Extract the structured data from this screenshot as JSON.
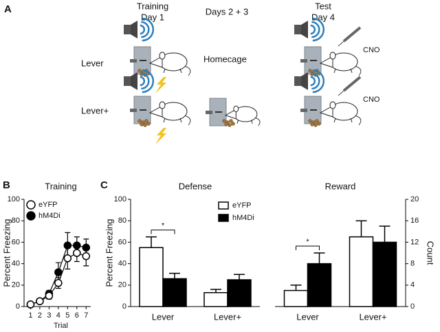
{
  "panels": {
    "a": "A",
    "b": "B",
    "c": "C"
  },
  "diagram": {
    "columns": [
      [
        "Training",
        "Day 1"
      ],
      [
        "Days 2 + 3"
      ],
      [
        "Test",
        "Day 4"
      ]
    ],
    "rows": [
      "Lever",
      "Lever+"
    ],
    "homecage": "Homecage",
    "drug": [
      "CNO",
      "CNO"
    ]
  },
  "chart_data": [
    {
      "type": "line",
      "title": "Training",
      "xlabel": "Trial",
      "ylabel": "Percent Freezing",
      "x": [
        1,
        2,
        3,
        4,
        5,
        6,
        7
      ],
      "xlim": [
        0.3,
        7.5
      ],
      "xticks": [
        1,
        2,
        3,
        4,
        5,
        6,
        7
      ],
      "ylim": [
        0,
        100
      ],
      "yticks": [
        0,
        20,
        40,
        60,
        80,
        100
      ],
      "legend": "upper left",
      "series": [
        {
          "name": "eYFP",
          "color": "#ffffff",
          "values": [
            2,
            5,
            10,
            22,
            45,
            50,
            47
          ],
          "errors": [
            2,
            2,
            3,
            5,
            10,
            8,
            9
          ]
        },
        {
          "name": "hM4Di",
          "color": "#000000",
          "values": [
            2,
            5,
            12,
            32,
            57,
            57,
            55
          ],
          "errors": [
            2,
            2,
            3,
            9,
            12,
            8,
            8
          ]
        }
      ]
    },
    {
      "type": "bar",
      "title": "Defense",
      "ylabel": "Percent Freezing",
      "categories": [
        "Lever",
        "Lever+"
      ],
      "ylim": [
        0,
        100
      ],
      "yticks": [
        0,
        20,
        40,
        60,
        80,
        100
      ],
      "legend": "upper right",
      "significance": [
        "*",
        null
      ],
      "series": [
        {
          "name": "eYFP",
          "color": "#ffffff",
          "values": [
            55,
            13
          ],
          "errors": [
            10,
            3
          ]
        },
        {
          "name": "hM4Di",
          "color": "#000000",
          "values": [
            26,
            25
          ],
          "errors": [
            5,
            5
          ]
        }
      ]
    },
    {
      "type": "bar",
      "title": "Reward",
      "ylabel": "Count",
      "axis_side": "right",
      "categories": [
        "Lever",
        "Lever+"
      ],
      "ylim": [
        0,
        20
      ],
      "yticks": [
        0,
        4,
        8,
        12,
        16,
        20
      ],
      "significance": [
        "*",
        null
      ],
      "series": [
        {
          "color": "#ffffff",
          "values": [
            3,
            13
          ],
          "errors": [
            1,
            3
          ]
        },
        {
          "color": "#000000",
          "values": [
            8,
            12
          ],
          "errors": [
            2,
            3
          ]
        }
      ]
    }
  ]
}
